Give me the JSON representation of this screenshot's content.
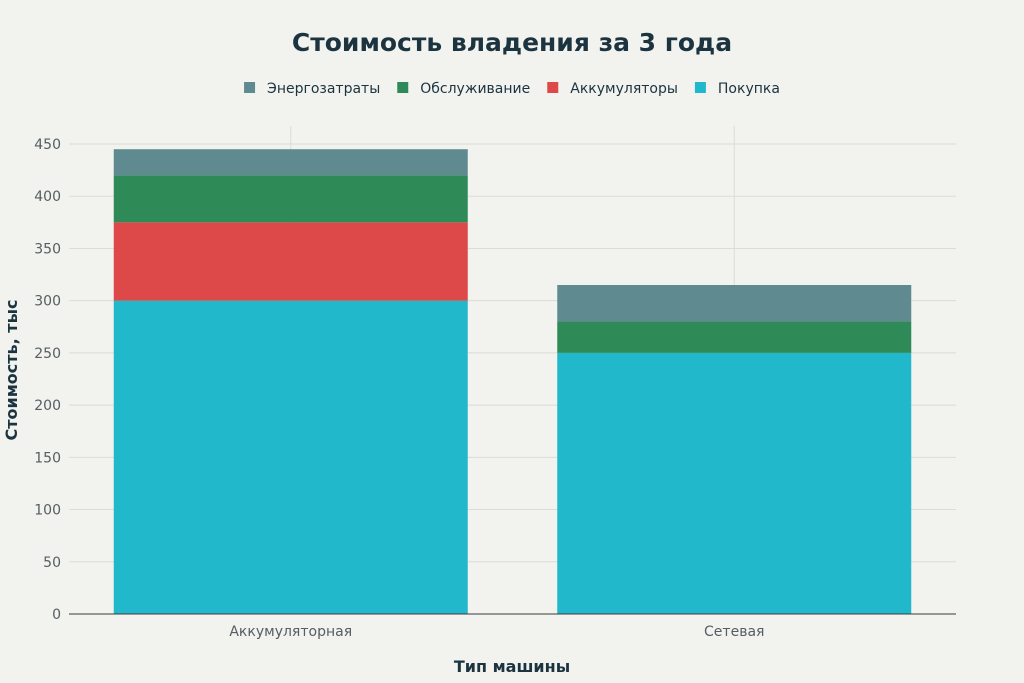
{
  "chart_data": {
    "type": "bar",
    "stacked": true,
    "title": "Стоимость владения за 3 года",
    "xlabel": "Тип машины",
    "ylabel": "Стоимость, тыс",
    "categories": [
      "Аккумуляторная",
      "Сетевая"
    ],
    "ylim": [
      0,
      470
    ],
    "yticks": [
      0,
      50,
      100,
      150,
      200,
      250,
      300,
      350,
      400,
      450
    ],
    "grid": true,
    "legend_position": "top-center",
    "legend_order": [
      "Энергозатраты",
      "Обслуживание",
      "Аккумуляторы",
      "Покупка"
    ],
    "series": [
      {
        "name": "Покупка",
        "color": "#22b8cc",
        "values": [
          300,
          250
        ]
      },
      {
        "name": "Аккумуляторы",
        "color": "#dd4848",
        "values": [
          75,
          0
        ]
      },
      {
        "name": "Обслуживание",
        "color": "#2e8b57",
        "values": [
          45,
          30
        ]
      },
      {
        "name": "Энергозатраты",
        "color": "#5f8a8f",
        "values": [
          25,
          35
        ]
      }
    ]
  }
}
